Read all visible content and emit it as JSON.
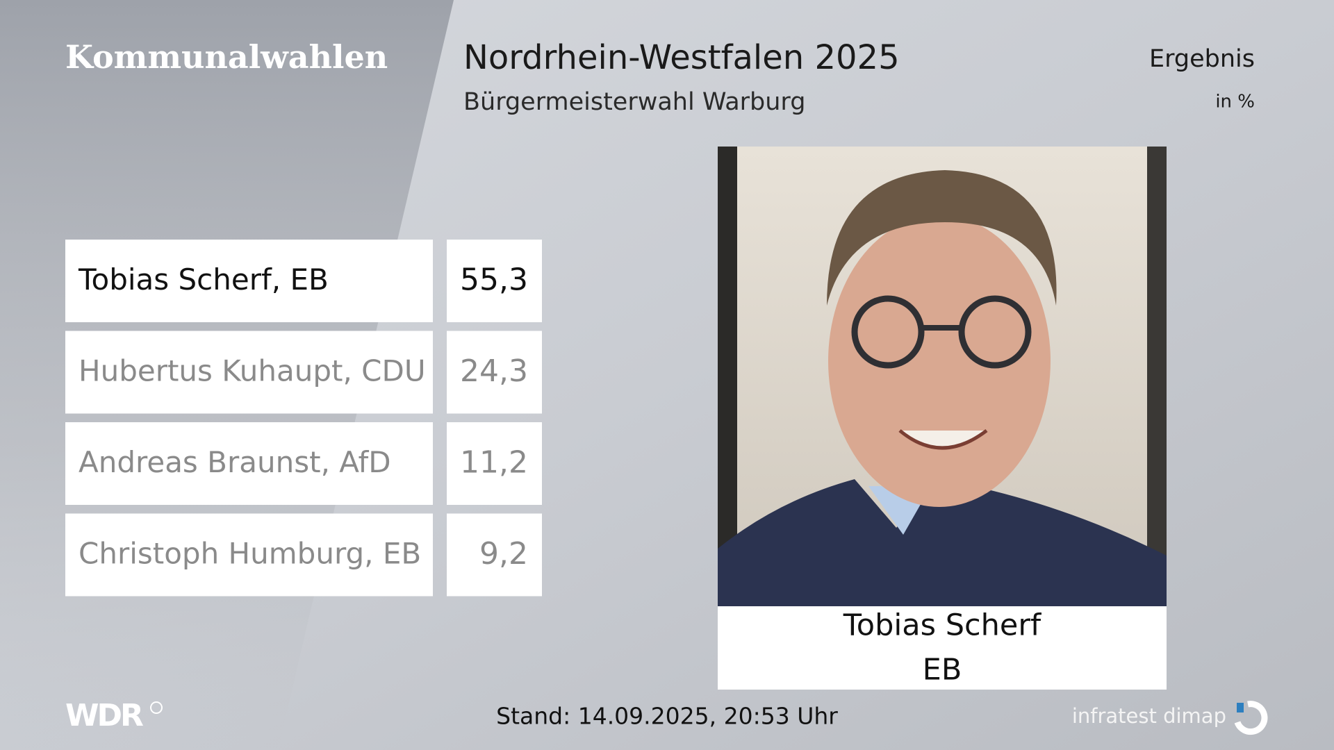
{
  "header": {
    "brand": "Kommunalwahlen",
    "title": "Nordrhein-Westfalen 2025",
    "subtitle": "Bürgermeisterwahl Warburg",
    "result_label": "Ergebnis",
    "unit": "in %"
  },
  "table": {
    "rows": [
      [
        "Tobias Scherf, EB",
        "55,3"
      ],
      [
        "Hubertus Kuhaupt, CDU",
        "24,3"
      ],
      [
        "Andreas Braunst, AfD",
        "11,2"
      ],
      [
        "Christoph Humburg, EB",
        "9,2"
      ]
    ]
  },
  "winner": {
    "name": "Tobias Scherf",
    "party": "EB"
  },
  "footer": {
    "broadcaster": "WDR",
    "timestamp": "Stand: 14.09.2025, 20:53 Uhr",
    "source": "infratest dimap"
  }
}
